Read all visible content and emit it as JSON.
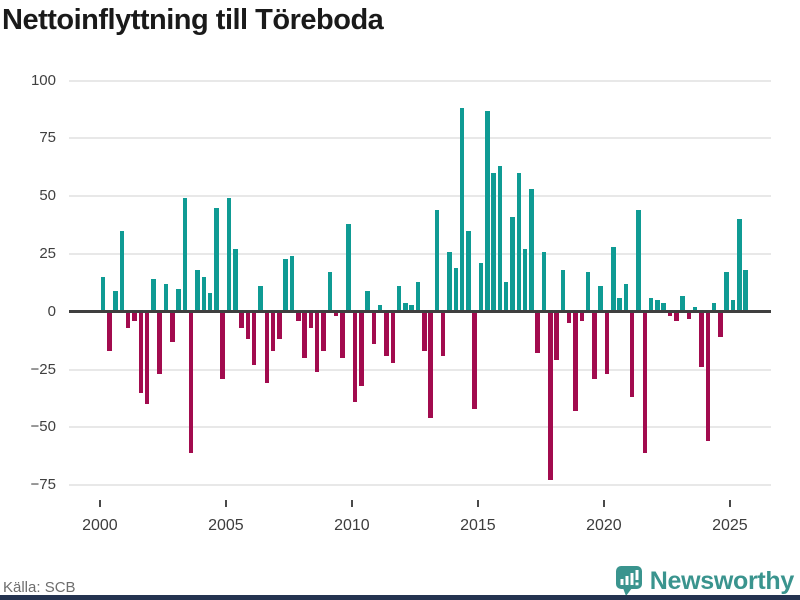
{
  "title": "Nettoinflyttning till Töreboda",
  "source": "Källa: SCB",
  "brand": {
    "name": "Newsworthy",
    "color": "#3a948e"
  },
  "colors": {
    "positive": "#0f9b94",
    "negative": "#a20b4e",
    "grid": "#e8e8e8",
    "zero_line": "#3f3f3f",
    "axis_text": "#404040",
    "title_text": "#1a1a1a",
    "source_text": "#6e6e6e",
    "bottom_bar": "#243350"
  },
  "chart_data": {
    "type": "bar",
    "title": "Nettoinflyttning till Töreboda",
    "frequency": "quarterly",
    "start": "2000Q1",
    "end": "2025Q3",
    "legend": "none",
    "grid": "horizontal",
    "ylim": [
      -94,
      104
    ],
    "y_gridlines": [
      100,
      75,
      50,
      25,
      0,
      -25,
      -50,
      -75
    ],
    "y_tick_labels": [
      "100",
      "75",
      "50",
      "25",
      "0",
      "−25",
      "−50",
      "−75"
    ],
    "x_tick_labels": [
      "2000",
      "2005",
      "2010",
      "2015",
      "2020",
      "2025"
    ],
    "years": [
      {
        "year": 2000,
        "values": [
          15,
          -17,
          9,
          35
        ]
      },
      {
        "year": 2001,
        "values": [
          -7,
          -4,
          -35,
          -40
        ]
      },
      {
        "year": 2002,
        "values": [
          14,
          -27,
          12,
          -13
        ]
      },
      {
        "year": 2003,
        "values": [
          10,
          49,
          -61,
          18
        ]
      },
      {
        "year": 2004,
        "values": [
          15,
          8,
          45,
          -29
        ]
      },
      {
        "year": 2005,
        "values": [
          49,
          27,
          -7,
          -12
        ]
      },
      {
        "year": 2006,
        "values": [
          -23,
          11,
          -31,
          -17
        ]
      },
      {
        "year": 2007,
        "values": [
          -12,
          23,
          24,
          -4
        ]
      },
      {
        "year": 2008,
        "values": [
          -20,
          -7,
          -26,
          -17
        ]
      },
      {
        "year": 2009,
        "values": [
          17,
          -2,
          -20,
          38
        ]
      },
      {
        "year": 2010,
        "values": [
          -39,
          -32,
          9,
          -14
        ]
      },
      {
        "year": 2011,
        "values": [
          3,
          -19,
          -22,
          11
        ]
      },
      {
        "year": 2012,
        "values": [
          4,
          3,
          13,
          -17
        ]
      },
      {
        "year": 2013,
        "values": [
          -46,
          44,
          -19,
          26
        ]
      },
      {
        "year": 2014,
        "values": [
          19,
          88,
          35,
          -42
        ]
      },
      {
        "year": 2015,
        "values": [
          21,
          87,
          60,
          63
        ]
      },
      {
        "year": 2016,
        "values": [
          13,
          41,
          60,
          27
        ]
      },
      {
        "year": 2017,
        "values": [
          53,
          -18,
          26,
          -73
        ]
      },
      {
        "year": 2018,
        "values": [
          -21,
          18,
          -5,
          -43
        ]
      },
      {
        "year": 2019,
        "values": [
          -4,
          17,
          -29,
          11
        ]
      },
      {
        "year": 2020,
        "values": [
          -27,
          28,
          6,
          12
        ]
      },
      {
        "year": 2021,
        "values": [
          -37,
          44,
          -61,
          6
        ]
      },
      {
        "year": 2022,
        "values": [
          5,
          4,
          -2,
          -4
        ]
      },
      {
        "year": 2023,
        "values": [
          7,
          -3,
          2,
          -24
        ]
      },
      {
        "year": 2024,
        "values": [
          -56,
          4,
          -11,
          17
        ]
      },
      {
        "year": 2025,
        "values": [
          5,
          40,
          18
        ]
      }
    ]
  }
}
